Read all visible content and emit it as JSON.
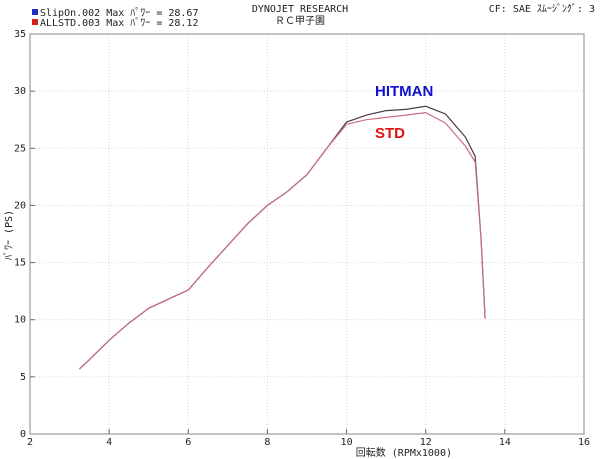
{
  "chart_data": {
    "type": "line",
    "title": "DYNOJET RESEARCH",
    "subtitle": "ＲＣ甲子園",
    "settings_text": "CF: SAE  ｽﾑｰｼﾞﾝｸﾞ: 3",
    "xlabel": "回転数 (RPMx1000)",
    "ylabel": "ﾊﾟﾜｰ (PS)",
    "annotations": [
      {
        "text": "HITMAN",
        "color": "#1010d0"
      },
      {
        "text": "STD",
        "color": "#e01010"
      }
    ],
    "x": [
      3.25,
      3.5,
      4,
      4.5,
      5,
      5.5,
      6,
      6.5,
      7,
      7.5,
      8,
      8.5,
      9,
      9.5,
      10,
      10.5,
      11,
      11.5,
      12,
      12.5,
      13,
      13.25,
      13.4,
      13.5
    ],
    "series": [
      {
        "name": "SlipOn.002 Max ﾊﾟﾜｰ = 28.67",
        "color": "#4a3a48",
        "legend_color": "#2030c0",
        "values": [
          5.7,
          6.5,
          8.2,
          9.7,
          11.0,
          11.8,
          12.6,
          14.6,
          16.5,
          18.4,
          20.0,
          21.2,
          22.7,
          25.0,
          27.3,
          27.9,
          28.3,
          28.4,
          28.67,
          28.0,
          26.0,
          24.3,
          17,
          10.1
        ]
      },
      {
        "name": "ALLSTD.003 Max ﾊﾟﾜｰ = 28.12",
        "color": "#c87080",
        "legend_color": "#d02020",
        "values": [
          5.7,
          6.5,
          8.2,
          9.7,
          11.0,
          11.8,
          12.6,
          14.6,
          16.5,
          18.4,
          20.0,
          21.2,
          22.7,
          25.0,
          27.1,
          27.5,
          27.7,
          27.9,
          28.12,
          27.2,
          25.2,
          23.8,
          17,
          10.1
        ]
      }
    ],
    "xlim": [
      2,
      16
    ],
    "xticks": [
      2,
      4,
      6,
      8,
      10,
      12,
      14,
      16
    ],
    "ylim": [
      0,
      35
    ],
    "yticks": [
      0,
      5,
      10,
      15,
      20,
      25,
      30,
      35
    ],
    "grid": true
  }
}
